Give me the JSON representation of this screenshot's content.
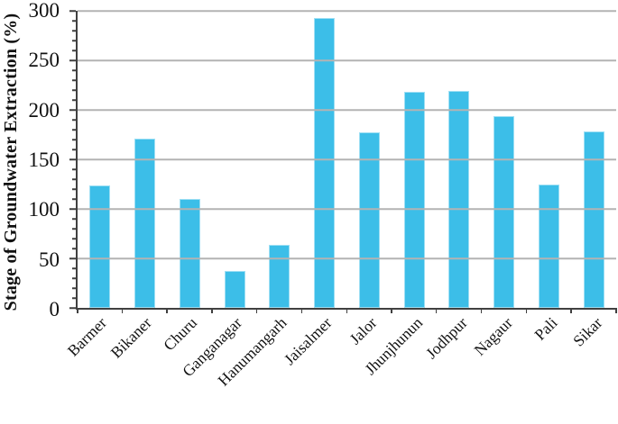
{
  "chart_data": {
    "type": "bar",
    "title": "",
    "xlabel": "",
    "ylabel": "Stage of Groundwater Extraction (%)",
    "categories": [
      "Barmer",
      "Bikaner",
      "Churu",
      "Ganganagar",
      "Hanumangarh",
      "Jaisalmer",
      "Jalor",
      "Jhunjhunun",
      "Jodhpur",
      "Nagaur",
      "Pali",
      "Sikar"
    ],
    "values": [
      124,
      171,
      110,
      37,
      64,
      293,
      177,
      218,
      219,
      194,
      125,
      178
    ],
    "ylim": [
      0,
      300
    ],
    "ytick_step": 50,
    "minor_tick_step": 10,
    "ytick_labels": [
      "0",
      "50",
      "100",
      "150",
      "200",
      "250",
      "300"
    ],
    "grid": true,
    "legend_position": "none",
    "colors": {
      "bar": "#3cbee8",
      "bar_edge": "#a8e0f2",
      "gridline": "#b3b3b3",
      "axis": "#404040",
      "text": "#111111",
      "background": "#ffffff"
    }
  }
}
